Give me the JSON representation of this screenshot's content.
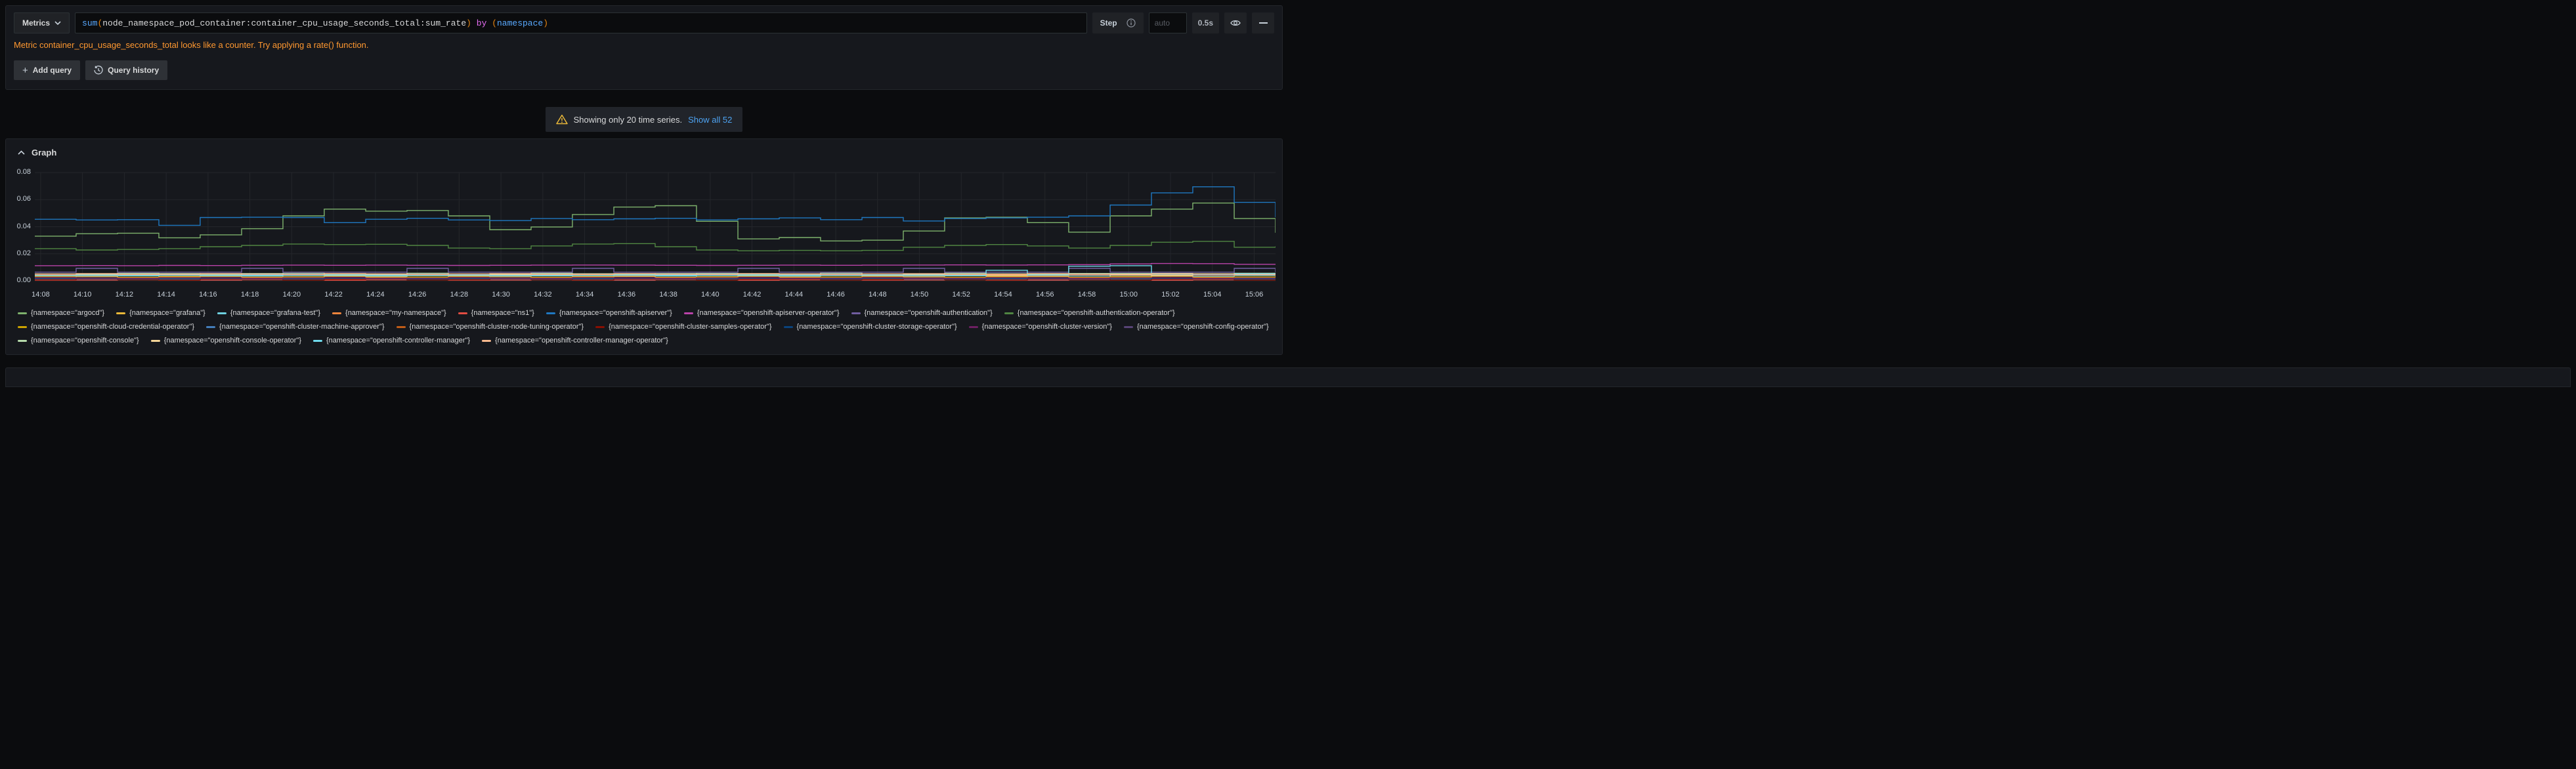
{
  "toolbar": {
    "metrics_label": "Metrics",
    "step_label": "Step",
    "step_input_placeholder": "auto",
    "interval_badge": "0.5s"
  },
  "query": {
    "segments": [
      {
        "t": "sum",
        "c": "fn"
      },
      {
        "t": "(",
        "c": "paren"
      },
      {
        "t": "node_namespace_pod_container:container_cpu_usage_seconds_total:sum_rate",
        "c": "metric"
      },
      {
        "t": ")",
        "c": "paren"
      },
      {
        "t": " ",
        "c": "metric"
      },
      {
        "t": "by",
        "c": "kw"
      },
      {
        "t": " ",
        "c": "metric"
      },
      {
        "t": "(",
        "c": "paren"
      },
      {
        "t": "namespace",
        "c": "label"
      },
      {
        "t": ")",
        "c": "paren"
      }
    ],
    "warning": "Metric container_cpu_usage_seconds_total looks like a counter. Try applying a rate() function."
  },
  "actions": {
    "add_query": "Add query",
    "query_history": "Query history"
  },
  "notice": {
    "text": "Showing only 20 time series.",
    "link": "Show all 52"
  },
  "graph": {
    "title": "Graph"
  },
  "chart_data": {
    "type": "line",
    "title": "Graph",
    "grid": true,
    "legend_position": "bottom",
    "ylim": [
      0,
      0.08
    ],
    "yticks": [
      "0.00",
      "0.02",
      "0.04",
      "0.06",
      "0.08"
    ],
    "xticks": [
      "14:08",
      "14:10",
      "14:12",
      "14:14",
      "14:16",
      "14:18",
      "14:20",
      "14:22",
      "14:24",
      "14:26",
      "14:28",
      "14:30",
      "14:32",
      "14:34",
      "14:36",
      "14:38",
      "14:40",
      "14:42",
      "14:44",
      "14:46",
      "14:48",
      "14:50",
      "14:52",
      "14:54",
      "14:56",
      "14:58",
      "15:00",
      "15:02",
      "15:04",
      "15:06"
    ],
    "series": [
      {
        "name": "argocd",
        "label": "{namespace=\"argocd\"}",
        "color": "#7EB26D",
        "values": [
          0.033,
          0.0348,
          0.0352,
          0.0318,
          0.034,
          0.0385,
          0.048,
          0.053,
          0.0515,
          0.052,
          0.048,
          0.0378,
          0.0398,
          0.049,
          0.0545,
          0.0555,
          0.044,
          0.031,
          0.032,
          0.0295,
          0.03,
          0.0368,
          0.0465,
          0.047,
          0.043,
          0.036,
          0.048,
          0.053,
          0.0575,
          0.046,
          0.0355
        ]
      },
      {
        "name": "grafana",
        "label": "{namespace=\"grafana\"}",
        "color": "#EAB839",
        "base": 0.003,
        "amp": 0.0004
      },
      {
        "name": "grafana-test",
        "label": "{namespace=\"grafana-test\"}",
        "color": "#6ED0E0",
        "base": 0.0038,
        "amp": 0.0003
      },
      {
        "name": "my-namespace",
        "label": "{namespace=\"my-namespace\"}",
        "color": "#EF843C",
        "base": 0.0042,
        "amp": 0.0004
      },
      {
        "name": "ns1",
        "label": "{namespace=\"ns1\"}",
        "color": "#E24D42",
        "base": 0.0006,
        "amp": 0.0002
      },
      {
        "name": "openshift-apiserver",
        "label": "{namespace=\"openshift-apiserver\"}",
        "color": "#1F78C1",
        "values": [
          0.0455,
          0.045,
          0.0452,
          0.041,
          0.0468,
          0.047,
          0.0468,
          0.043,
          0.0455,
          0.0462,
          0.045,
          0.0445,
          0.046,
          0.0452,
          0.0458,
          0.0462,
          0.045,
          0.0458,
          0.0465,
          0.0452,
          0.0468,
          0.0442,
          0.046,
          0.0465,
          0.047,
          0.048,
          0.056,
          0.065,
          0.0695,
          0.058,
          0.047
        ]
      },
      {
        "name": "openshift-apiserver-operator",
        "label": "{namespace=\"openshift-apiserver-operator\"}",
        "color": "#BA43A9",
        "values": [
          0.0112,
          0.0113,
          0.0112,
          0.0114,
          0.0113,
          0.0115,
          0.0116,
          0.0115,
          0.0116,
          0.0115,
          0.0114,
          0.0115,
          0.0116,
          0.0117,
          0.0116,
          0.0115,
          0.0114,
          0.0115,
          0.0116,
          0.0115,
          0.0116,
          0.0117,
          0.0118,
          0.0117,
          0.0118,
          0.012,
          0.0125,
          0.0128,
          0.0127,
          0.0122,
          0.012
        ]
      },
      {
        "name": "openshift-authentication",
        "label": "{namespace=\"openshift-authentication\"}",
        "color": "#705DA0",
        "values": [
          0.0064,
          0.0092,
          0.0064,
          0.0064,
          0.0064,
          0.0092,
          0.0064,
          0.0064,
          0.0064,
          0.0092,
          0.0064,
          0.0064,
          0.0064,
          0.0092,
          0.0064,
          0.0064,
          0.0064,
          0.0092,
          0.0064,
          0.0064,
          0.0064,
          0.0092,
          0.0064,
          0.0064,
          0.0064,
          0.0092,
          0.0064,
          0.0064,
          0.0064,
          0.0092,
          0.0064
        ]
      },
      {
        "name": "openshift-authentication-operator",
        "label": "{namespace=\"openshift-authentication-operator\"}",
        "color": "#508642",
        "values": [
          0.0238,
          0.0228,
          0.0232,
          0.0238,
          0.0252,
          0.0262,
          0.0272,
          0.0268,
          0.027,
          0.0262,
          0.0242,
          0.0238,
          0.0258,
          0.0272,
          0.0275,
          0.0252,
          0.0228,
          0.0222,
          0.0225,
          0.0222,
          0.0225,
          0.0248,
          0.0262,
          0.0268,
          0.0258,
          0.0242,
          0.0262,
          0.0285,
          0.0292,
          0.0248,
          0.0255
        ]
      },
      {
        "name": "openshift-cloud-credential-operator",
        "label": "{namespace=\"openshift-cloud-credential-operator\"}",
        "color": "#CCA300",
        "base": 0.0024,
        "amp": 0.0003
      },
      {
        "name": "openshift-cluster-machine-approver",
        "label": "{namespace=\"openshift-cluster-machine-approver\"}",
        "color": "#447EBC",
        "base": 0.0013,
        "amp": 0.0002
      },
      {
        "name": "openshift-cluster-node-tuning-operator",
        "label": "{namespace=\"openshift-cluster-node-tuning-operator\"}",
        "color": "#C15C17",
        "base": 0.0019,
        "amp": 0.0003
      },
      {
        "name": "openshift-cluster-samples-operator",
        "label": "{namespace=\"openshift-cluster-samples-operator\"}",
        "color": "#890F02",
        "base": 0.001,
        "amp": 0.0004
      },
      {
        "name": "openshift-cluster-storage-operator",
        "label": "{namespace=\"openshift-cluster-storage-operator\"}",
        "color": "#0A437C",
        "base": 0.0016,
        "amp": 0.0002
      },
      {
        "name": "openshift-cluster-version",
        "label": "{namespace=\"openshift-cluster-version\"}",
        "color": "#6D1F62",
        "base": 0.0021,
        "amp": 0.0003
      },
      {
        "name": "openshift-config-operator",
        "label": "{namespace=\"openshift-config-operator\"}",
        "color": "#584477",
        "base": 0.0047,
        "amp": 0.0003
      },
      {
        "name": "openshift-console",
        "label": "{namespace=\"openshift-console\"}",
        "color": "#B7DBAB",
        "base": 0.0052,
        "amp": 0.0004
      },
      {
        "name": "openshift-console-operator",
        "label": "{namespace=\"openshift-console-operator\"}",
        "color": "#F4D598",
        "base": 0.0044,
        "amp": 0.0005
      },
      {
        "name": "openshift-controller-manager",
        "label": "{namespace=\"openshift-controller-manager\"}",
        "color": "#70DBED",
        "values": [
          0.004,
          0.0041,
          0.004,
          0.0042,
          0.004,
          0.0041,
          0.004,
          0.0042,
          0.0041,
          0.004,
          0.0042,
          0.004,
          0.0041,
          0.004,
          0.0042,
          0.0041,
          0.004,
          0.0042,
          0.0041,
          0.004,
          0.0042,
          0.0041,
          0.004,
          0.0078,
          0.0042,
          0.0108,
          0.0112,
          0.0055,
          0.0048,
          0.0052,
          0.005
        ]
      },
      {
        "name": "openshift-controller-manager-operator",
        "label": "{namespace=\"openshift-controller-manager-operator\"}",
        "color": "#F9BA8F",
        "base": 0.005,
        "amp": 0.0004
      }
    ]
  }
}
